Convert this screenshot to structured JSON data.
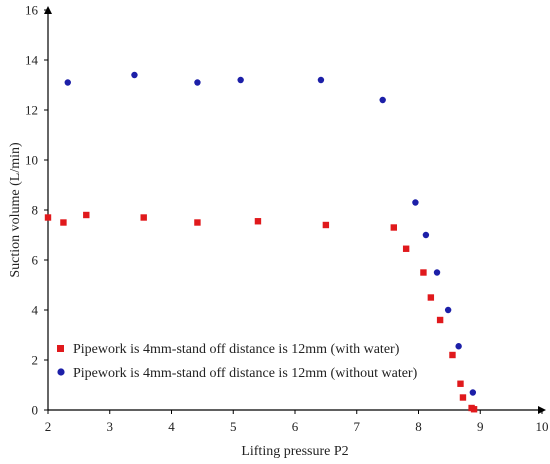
{
  "chart_data": {
    "type": "scatter",
    "xlabel": "Lifting pressure P2",
    "ylabel": "Suction volume (L/min)",
    "xlim": [
      2,
      10
    ],
    "ylim": [
      0,
      16
    ],
    "x_ticks": [
      2,
      3,
      4,
      5,
      6,
      7,
      8,
      9,
      10
    ],
    "y_ticks": [
      0,
      2,
      4,
      6,
      8,
      10,
      12,
      14,
      16
    ],
    "grid": false,
    "legend_position": "bottom-left",
    "series": [
      {
        "name": "Pipework is 4mm-stand off distance is 12mm (with water)",
        "marker": "square",
        "color": "#e0191c",
        "points": [
          [
            2.0,
            7.7
          ],
          [
            2.25,
            7.5
          ],
          [
            2.62,
            7.8
          ],
          [
            3.55,
            7.7
          ],
          [
            4.42,
            7.5
          ],
          [
            5.4,
            7.55
          ],
          [
            6.5,
            7.4
          ],
          [
            7.6,
            7.3
          ],
          [
            7.8,
            6.45
          ],
          [
            8.08,
            5.5
          ],
          [
            8.2,
            4.5
          ],
          [
            8.35,
            3.6
          ],
          [
            8.55,
            2.2
          ],
          [
            8.68,
            1.05
          ],
          [
            8.72,
            0.5
          ],
          [
            8.86,
            0.08
          ],
          [
            8.9,
            0.03
          ]
        ]
      },
      {
        "name": "Pipework is 4mm-stand off distance is 12mm (without water)",
        "marker": "circle",
        "color": "#1c1fa8",
        "points": [
          [
            2.32,
            13.1
          ],
          [
            3.4,
            13.4
          ],
          [
            4.42,
            13.1
          ],
          [
            5.12,
            13.2
          ],
          [
            6.42,
            13.2
          ],
          [
            7.42,
            12.4
          ],
          [
            7.95,
            8.3
          ],
          [
            8.12,
            7.0
          ],
          [
            8.3,
            5.5
          ],
          [
            8.48,
            4.0
          ],
          [
            8.65,
            2.55
          ],
          [
            8.88,
            0.7
          ]
        ]
      }
    ]
  }
}
